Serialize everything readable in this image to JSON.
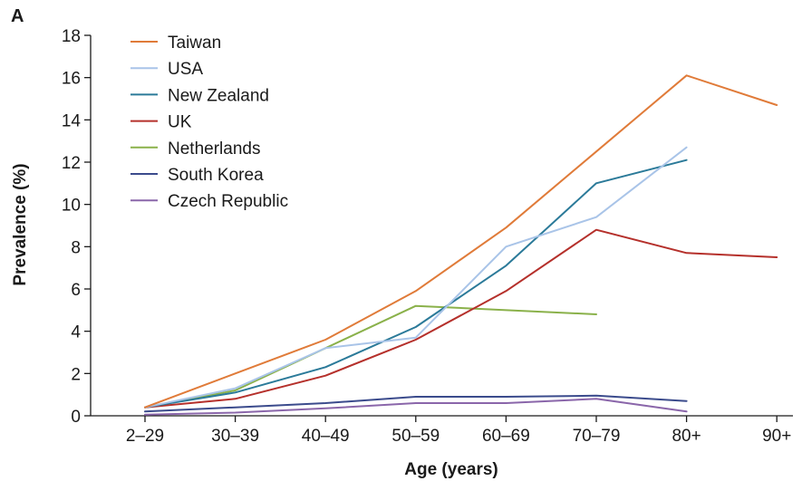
{
  "panel_label": "A",
  "chart_data": {
    "type": "line",
    "title": "",
    "xlabel": "Age (years)",
    "ylabel": "Prevalence (%)",
    "ylim": [
      0,
      18
    ],
    "yticks": [
      0,
      2,
      4,
      6,
      8,
      10,
      12,
      14,
      16,
      18
    ],
    "grid": false,
    "legend_position": "top-left",
    "categories": [
      "2–29",
      "30–39",
      "40–49",
      "50–59",
      "60–69",
      "70–79",
      "80+",
      "90+"
    ],
    "series": [
      {
        "name": "Taiwan",
        "color": "#e07b39",
        "values": [
          0.4,
          2.0,
          3.6,
          5.9,
          8.9,
          12.5,
          16.1,
          14.7
        ]
      },
      {
        "name": "USA",
        "color": "#a9c4e8",
        "values": [
          0.4,
          1.3,
          3.2,
          3.7,
          8.0,
          9.4,
          12.7,
          null
        ]
      },
      {
        "name": "New Zealand",
        "color": "#2b7a99",
        "values": [
          0.4,
          1.1,
          2.3,
          4.2,
          7.1,
          11.0,
          12.1,
          null
        ]
      },
      {
        "name": "UK",
        "color": "#b5302b",
        "values": [
          0.4,
          0.8,
          1.9,
          3.6,
          5.9,
          8.8,
          7.7,
          7.5
        ]
      },
      {
        "name": "Netherlands",
        "color": "#8ab14a",
        "values": [
          0.4,
          1.2,
          3.2,
          5.2,
          null,
          4.8,
          null,
          null
        ]
      },
      {
        "name": "South Korea",
        "color": "#3b4b8c",
        "values": [
          0.2,
          0.4,
          0.6,
          0.9,
          0.9,
          0.95,
          0.7,
          null
        ]
      },
      {
        "name": "Czech Republic",
        "color": "#8a66aa",
        "values": [
          0.05,
          0.15,
          0.35,
          0.6,
          0.6,
          0.8,
          0.2,
          null
        ]
      }
    ]
  }
}
